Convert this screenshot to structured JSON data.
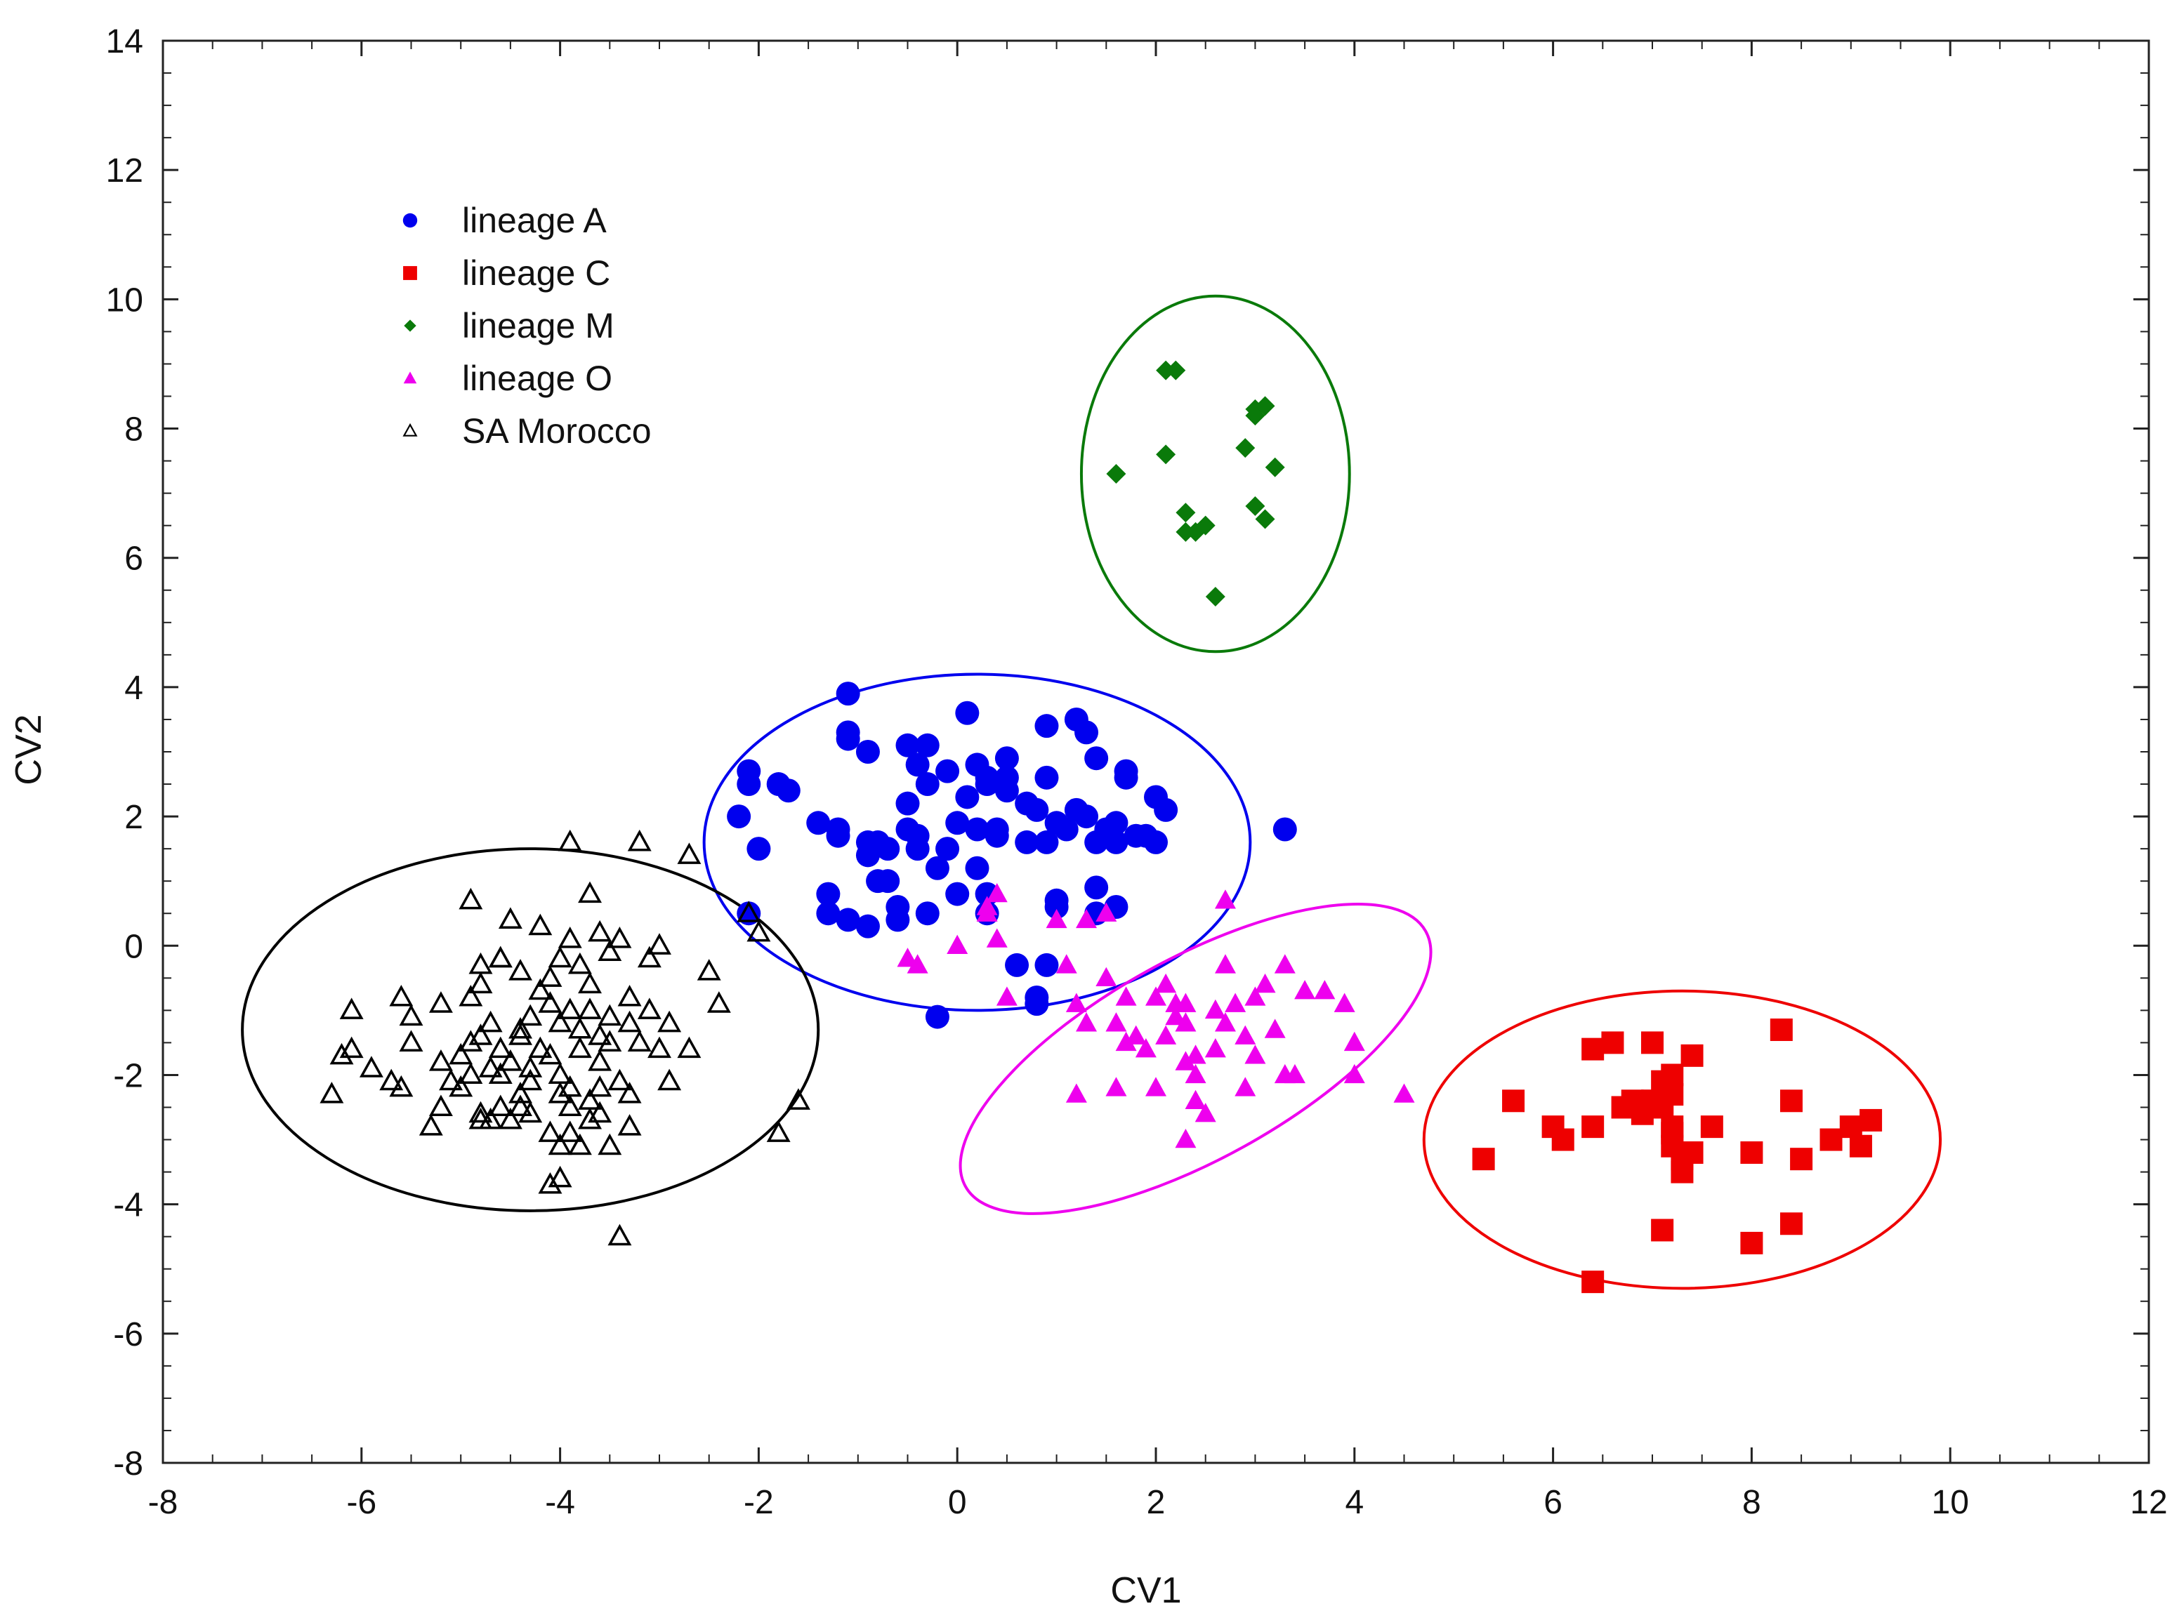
{
  "chart_data": {
    "type": "scatter",
    "title": "",
    "xlabel": "CV1",
    "ylabel": "CV2",
    "xlim": [
      -8,
      12
    ],
    "ylim": [
      -8,
      14
    ],
    "xticks": [
      -8,
      -6,
      -4,
      -2,
      0,
      2,
      4,
      6,
      8,
      10,
      12
    ],
    "yticks": [
      -8,
      -6,
      -4,
      -2,
      0,
      2,
      4,
      6,
      8,
      10,
      12,
      14
    ],
    "grid": false,
    "legend_position": "top-left",
    "series": [
      {
        "name": "lineage A",
        "marker": "circle",
        "color": "#0000ee",
        "filled": true,
        "x": [
          -1.1,
          -1.1,
          -1.1,
          -0.9,
          -0.5,
          -0.4,
          -0.3,
          -0.1,
          0.1,
          0.2,
          0.3,
          0.5,
          0.9,
          1.2,
          1.3,
          1.4,
          1.7,
          1.7,
          2.0,
          -2.1,
          -2.1,
          -2.2,
          -1.7,
          -0.5,
          -0.3,
          0.1,
          0.3,
          0.5,
          0.7,
          1.3,
          1.6,
          -1.4,
          -1.2,
          -0.9,
          -0.8,
          -0.5,
          -0.4,
          -0.1,
          0.2,
          0.4,
          0.8,
          0.9,
          1.1,
          1.2,
          1.5,
          1.8,
          1.9,
          2.1,
          -2.0,
          -1.2,
          -0.9,
          -0.7,
          -0.4,
          -0.2,
          0.0,
          0.4,
          0.7,
          1.0,
          1.4,
          1.6,
          2.0,
          3.3,
          -1.3,
          -0.7,
          -0.6,
          -0.3,
          0.0,
          0.3,
          1.0,
          1.4,
          1.6,
          -2.1,
          -1.3,
          -1.1,
          -0.9,
          -0.6,
          0.3,
          1.0,
          1.4,
          0.8,
          0.8,
          0.9,
          -0.2,
          -1.8,
          0.6,
          0.2,
          0.5,
          0.9,
          -0.8
        ],
        "y": [
          3.9,
          3.3,
          3.2,
          3.0,
          3.1,
          2.8,
          3.1,
          2.7,
          3.6,
          2.8,
          2.5,
          2.9,
          3.4,
          3.5,
          3.3,
          2.9,
          2.7,
          2.6,
          2.3,
          2.7,
          2.5,
          2.0,
          2.4,
          2.2,
          2.5,
          2.3,
          2.6,
          2.4,
          2.2,
          2.0,
          1.9,
          1.9,
          1.8,
          1.6,
          1.6,
          1.8,
          1.7,
          1.5,
          1.8,
          1.7,
          2.1,
          1.6,
          1.8,
          2.1,
          1.8,
          1.7,
          1.7,
          2.1,
          1.5,
          1.7,
          1.4,
          1.5,
          1.5,
          1.2,
          1.9,
          1.8,
          1.6,
          1.9,
          1.6,
          1.6,
          1.6,
          1.8,
          0.5,
          1.0,
          0.6,
          0.5,
          0.8,
          0.8,
          0.7,
          0.9,
          0.6,
          0.5,
          0.8,
          0.4,
          0.3,
          0.4,
          0.5,
          0.6,
          0.5,
          -0.8,
          -0.9,
          -0.3,
          -1.1,
          2.5,
          -0.3,
          1.2,
          2.6,
          2.6,
          1.0
        ]
      },
      {
        "name": "lineage C",
        "marker": "square",
        "color": "#ee0000",
        "filled": true,
        "x": [
          5.3,
          5.6,
          6.0,
          6.1,
          6.4,
          6.4,
          6.6,
          6.7,
          6.8,
          6.9,
          7.0,
          7.0,
          7.1,
          7.1,
          7.2,
          7.2,
          7.2,
          7.2,
          7.3,
          7.3,
          7.4,
          7.4,
          7.6,
          8.0,
          8.3,
          8.4,
          8.5,
          8.8,
          9.0,
          9.1,
          9.2,
          7.1,
          8.0,
          8.4,
          6.4,
          7.0,
          6.9,
          7.1,
          7.2
        ],
        "y": [
          -3.3,
          -2.4,
          -2.8,
          -3.0,
          -2.8,
          -1.6,
          -1.5,
          -2.5,
          -2.4,
          -2.5,
          -1.5,
          -2.4,
          -2.1,
          -2.5,
          -2.0,
          -2.3,
          -2.8,
          -3.1,
          -3.3,
          -3.5,
          -1.7,
          -3.2,
          -2.8,
          -3.2,
          -1.3,
          -2.4,
          -3.3,
          -3.0,
          -2.8,
          -3.1,
          -2.7,
          -4.4,
          -4.6,
          -4.3,
          -5.2,
          -2.4,
          -2.6,
          -2.5,
          -2.9
        ]
      },
      {
        "name": "lineage M",
        "marker": "diamond",
        "color": "#0a7a0a",
        "filled": true,
        "x": [
          2.1,
          2.2,
          3.0,
          3.0,
          3.1,
          1.6,
          2.1,
          2.9,
          3.2,
          2.3,
          2.4,
          2.5,
          2.3,
          3.0,
          3.1,
          2.6
        ],
        "y": [
          8.9,
          8.9,
          8.3,
          8.2,
          8.35,
          7.3,
          7.6,
          7.7,
          7.4,
          6.7,
          6.4,
          6.5,
          6.4,
          6.8,
          6.6,
          5.4
        ]
      },
      {
        "name": "lineage O",
        "marker": "triangle",
        "color": "#ee00ee",
        "filled": true,
        "x": [
          0.4,
          0.3,
          0.3,
          0.4,
          1.0,
          1.3,
          1.5,
          2.7,
          -0.5,
          -0.4,
          0.0,
          0.5,
          1.1,
          1.2,
          1.5,
          1.7,
          2.0,
          2.1,
          2.2,
          2.3,
          2.7,
          2.8,
          3.0,
          3.1,
          3.3,
          3.5,
          3.7,
          3.9,
          1.3,
          1.6,
          1.8,
          2.2,
          2.3,
          2.6,
          2.7,
          2.9,
          3.2,
          4.0,
          1.7,
          1.9,
          2.1,
          2.4,
          2.6,
          3.0,
          3.3,
          4.0,
          2.3,
          2.4,
          2.9,
          3.4,
          1.2,
          1.6,
          2.0,
          2.4,
          4.5,
          2.5,
          2.3
        ],
        "y": [
          0.8,
          0.6,
          0.5,
          0.1,
          0.4,
          0.4,
          0.5,
          0.7,
          -0.2,
          -0.3,
          0.0,
          -0.8,
          -0.3,
          -0.9,
          -0.5,
          -0.8,
          -0.8,
          -0.6,
          -0.9,
          -0.9,
          -0.3,
          -0.9,
          -0.8,
          -0.6,
          -0.3,
          -0.7,
          -0.7,
          -0.9,
          -1.2,
          -1.2,
          -1.4,
          -1.1,
          -1.2,
          -1.0,
          -1.2,
          -1.4,
          -1.3,
          -1.5,
          -1.5,
          -1.6,
          -1.4,
          -1.7,
          -1.6,
          -1.7,
          -2.0,
          -2.0,
          -1.8,
          -2.0,
          -2.2,
          -2.0,
          -2.3,
          -2.2,
          -2.2,
          -2.4,
          -2.3,
          -2.6,
          -3.0
        ]
      },
      {
        "name": "SA Morocco",
        "marker": "triangle",
        "color": "#000000",
        "filled": false,
        "x": [
          -3.9,
          -3.2,
          -2.7,
          -4.9,
          -3.7,
          -2.1,
          -4.5,
          -3.6,
          -4.2,
          -3.4,
          -3.0,
          -3.9,
          -4.0,
          -4.6,
          -3.8,
          -3.5,
          -4.8,
          -4.6,
          -4.4,
          -2.0,
          -2.5,
          -3.1,
          -4.1,
          -3.7,
          -4.2,
          -4.8,
          -5.6,
          -4.9,
          -3.3,
          -2.4,
          -5.2,
          -4.1,
          -3.9,
          -3.7,
          -3.1,
          -3.5,
          -4.3,
          -4.0,
          -6.1,
          -5.5,
          -4.7,
          -4.4,
          -3.8,
          -3.3,
          -2.9,
          -4.4,
          -3.6,
          -4.8,
          -3.2,
          -3.5,
          -3.8,
          -4.9,
          -4.6,
          -4.2,
          -4.1,
          -4.5,
          -5.5,
          -5.9,
          -5.2,
          -4.7,
          -4.3,
          -3.6,
          -3.0,
          -2.7,
          -4.6,
          -4.0,
          -4.3,
          -3.9,
          -3.4,
          -4.9,
          -5.1,
          -5.7,
          -6.2,
          -6.1,
          -4.4,
          -4.0,
          -3.6,
          -3.3,
          -2.9,
          -5.0,
          -4.6,
          -3.9,
          -3.7,
          -4.4,
          -4.3,
          -4.7,
          -5.6,
          -6.3,
          -5.2,
          -4.8,
          -4.1,
          -3.6,
          -3.9,
          -3.3,
          -1.6,
          -5.3,
          -4.5,
          -4.0,
          -4.8,
          -5.0,
          -3.5,
          -3.7,
          -1.8,
          -3.8,
          -4.1,
          -4.0,
          -3.4
        ],
        "y": [
          1.6,
          1.6,
          1.4,
          0.7,
          0.8,
          0.5,
          0.4,
          0.2,
          0.3,
          0.1,
          0.0,
          0.1,
          -0.2,
          -0.2,
          -0.3,
          -0.1,
          -0.3,
          -0.2,
          -0.4,
          0.2,
          -0.4,
          -0.2,
          -0.5,
          -0.6,
          -0.7,
          -0.6,
          -0.8,
          -0.8,
          -0.8,
          -0.9,
          -0.9,
          -0.9,
          -1.0,
          -1.0,
          -1.0,
          -1.1,
          -1.1,
          -1.2,
          -1.0,
          -1.1,
          -1.2,
          -1.3,
          -1.3,
          -1.2,
          -1.2,
          -1.4,
          -1.4,
          -1.4,
          -1.5,
          -1.5,
          -1.6,
          -1.5,
          -1.6,
          -1.6,
          -1.7,
          -1.8,
          -1.5,
          -1.9,
          -1.8,
          -1.9,
          -1.9,
          -1.8,
          -1.6,
          -1.6,
          -2.0,
          -2.0,
          -2.1,
          -2.2,
          -2.1,
          -2.0,
          -2.1,
          -2.1,
          -1.7,
          -1.6,
          -2.3,
          -2.3,
          -2.2,
          -2.3,
          -2.1,
          -2.2,
          -2.5,
          -2.5,
          -2.4,
          -2.5,
          -2.6,
          -2.7,
          -2.2,
          -2.3,
          -2.5,
          -2.7,
          -2.9,
          -2.6,
          -2.9,
          -2.8,
          -2.4,
          -2.8,
          -2.7,
          -3.1,
          -2.6,
          -1.7,
          -3.1,
          -2.7,
          -2.9,
          -3.1,
          -3.7,
          -3.6,
          -4.5
        ]
      }
    ],
    "ellipses": [
      {
        "name": "lineage A",
        "color": "#0000ee",
        "cx": 0.2,
        "cy": 1.6,
        "rx": 2.75,
        "ry": 2.6,
        "rotation_deg": 0
      },
      {
        "name": "lineage C",
        "color": "#ee0000",
        "cx": 7.3,
        "cy": -3.0,
        "rx": 2.6,
        "ry": 2.3,
        "rotation_deg": 0
      },
      {
        "name": "lineage M",
        "color": "#0a7a0a",
        "cx": 2.6,
        "cy": 7.3,
        "rx": 1.35,
        "ry": 2.75,
        "rotation_deg": 0
      },
      {
        "name": "lineage O",
        "color": "#ee00ee",
        "cx": 2.4,
        "cy": -1.75,
        "rx": 2.65,
        "ry": 1.55,
        "rotation_deg": -29
      },
      {
        "name": "SA Morocco",
        "color": "#000000",
        "cx": -4.3,
        "cy": -1.3,
        "rx": 2.9,
        "ry": 2.8,
        "rotation_deg": 0
      }
    ]
  }
}
